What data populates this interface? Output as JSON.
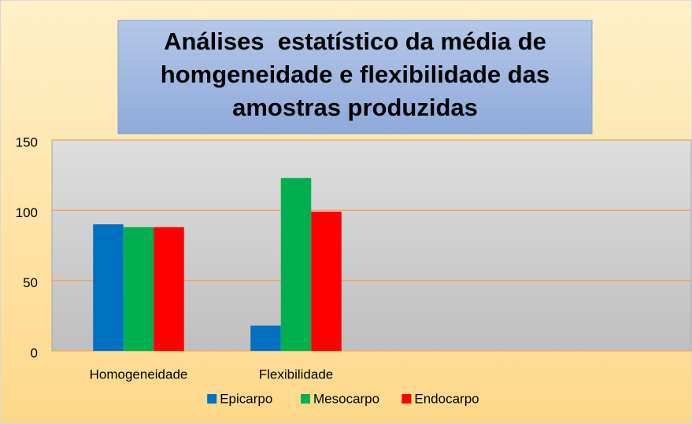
{
  "chart_data": {
    "type": "bar",
    "title_lines": [
      "Análises  estatístico da média de",
      "homgeneidade e flexibilidade das",
      "amostras produzidas"
    ],
    "categories": [
      "Homogeneidade",
      "Flexibilidade",
      null,
      null
    ],
    "series": [
      {
        "name": "Epicarpo",
        "color": "#0070c0",
        "values": [
          90,
          18,
          null,
          null
        ]
      },
      {
        "name": "Mesocarpo",
        "color": "#00b050",
        "values": [
          88,
          123,
          null,
          null
        ]
      },
      {
        "name": "Endocarpo",
        "color": "#ff0000",
        "values": [
          88,
          99,
          null,
          null
        ]
      }
    ],
    "ylim": [
      0,
      150
    ],
    "yticks": [
      0,
      50,
      100,
      150
    ],
    "grid": true,
    "legend": "bottom"
  }
}
